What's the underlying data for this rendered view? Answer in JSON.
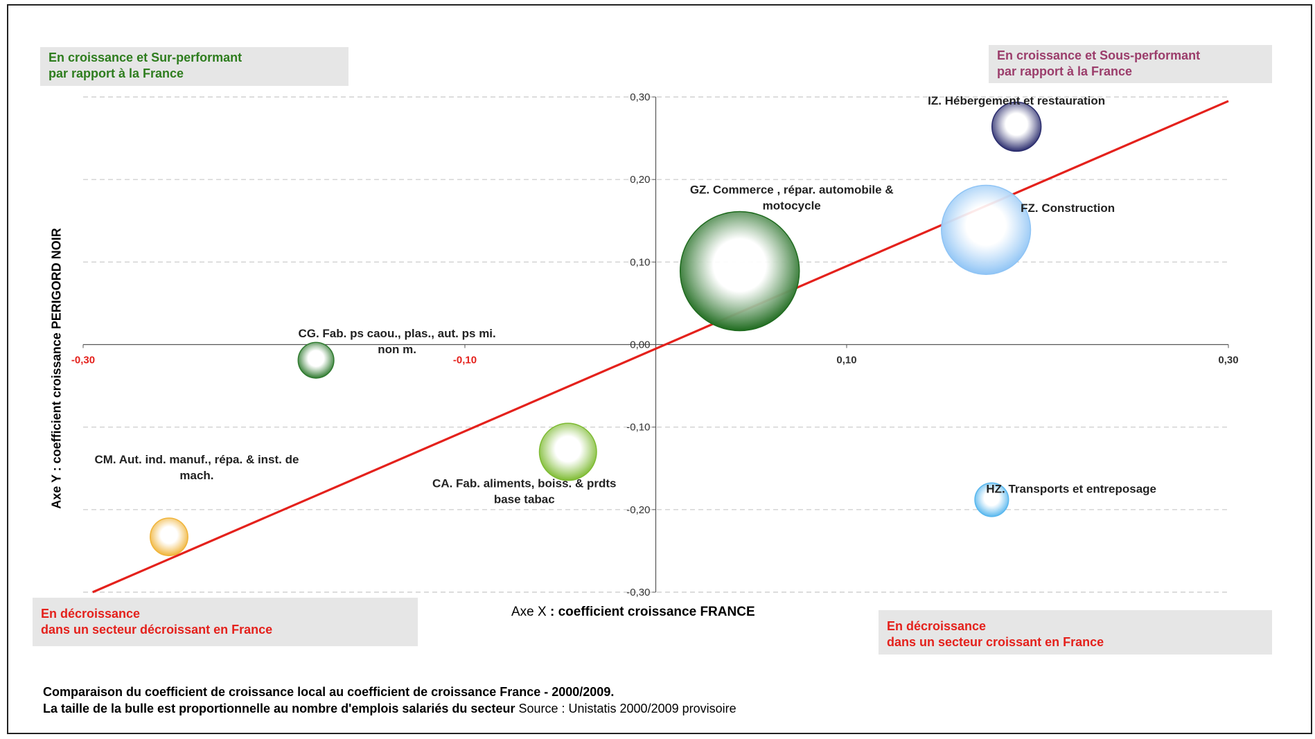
{
  "quadrants": {
    "top_left": {
      "line1": "En croissance et Sur-performant",
      "line2": "par rapport à la France",
      "color": "#2e7d1e"
    },
    "top_right": {
      "line1": "En croissance et Sous-performant",
      "line2": "par rapport à la France",
      "color": "#9b3d6b"
    },
    "bottom_left": {
      "line1": "En décroissance",
      "line2": "dans un secteur décroissant en France",
      "color": "#e4211c"
    },
    "bottom_right": {
      "line1": "En décroissance",
      "line2": "dans un secteur croissant en France",
      "color": "#e4211c"
    }
  },
  "caption": {
    "line1": "Comparaison du coefficient de croissance local au coefficient de croissance France - 2000/2009.",
    "line2_bold": "La taille de la bulle est proportionnelle au nombre d'emplois salariés du secteur",
    "line2_source": " Source : Unistatis 2000/2009 provisoire"
  },
  "chart_data": {
    "type": "scatter",
    "subtype": "bubble",
    "xlabel_prefix": "Axe X",
    "xlabel_rest": " : coefficient croissance FRANCE",
    "ylabel": "Axe Y : coefficient croissance PERIGORD NOIR",
    "xlim": [
      -0.3,
      0.3
    ],
    "ylim": [
      -0.3,
      0.3
    ],
    "x_ticks": [
      "-0,30",
      "-0,10",
      "0,10",
      "0,30"
    ],
    "x_tick_values": [
      -0.3,
      -0.1,
      0.1,
      0.3
    ],
    "y_ticks": [
      "0,30",
      "0,20",
      "0,10",
      "0,00",
      "-0,10",
      "-0,20",
      "-0,30"
    ],
    "y_tick_values": [
      0.3,
      0.2,
      0.1,
      0.0,
      -0.1,
      -0.2,
      -0.3
    ],
    "x_tick_color": "#e4211c",
    "x_tick_color_positive": "#333333",
    "grid": "horizontal dashed",
    "reference_line": {
      "from": [
        -0.295,
        -0.3
      ],
      "to": [
        0.3,
        0.295
      ],
      "color": "#e4211c"
    },
    "points": [
      {
        "label_lines": [
          "IZ. Hébergement et restauration"
        ],
        "x": 0.189,
        "y": 0.264,
        "size": 0.17,
        "color": "#2b2d6e"
      },
      {
        "label_lines": [
          "GZ. Commerce , répar. automobile &",
          "motocycle"
        ],
        "x": 0.044,
        "y": 0.089,
        "size": 1.0,
        "color": "#1f6b1f"
      },
      {
        "label_lines": [
          "FZ. Construction"
        ],
        "x": 0.173,
        "y": 0.139,
        "size": 0.56,
        "color": "#8fc4f5"
      },
      {
        "label_lines": [
          "CG. Fab. ps caou., plas., aut. ps mi.",
          "non m."
        ],
        "x": -0.178,
        "y": -0.019,
        "size": 0.09,
        "color": "#2f7a2f"
      },
      {
        "label_lines": [
          "CA. Fab. aliments, boiss. & prdts",
          "base tabac"
        ],
        "x": -0.046,
        "y": -0.13,
        "size": 0.23,
        "color": "#7ebb33"
      },
      {
        "label_lines": [
          "CM. Aut. ind. manuf., répa. & inst. de",
          "mach."
        ],
        "x": -0.255,
        "y": -0.233,
        "size": 0.1,
        "color": "#f0b43a"
      },
      {
        "label_lines": [
          "HZ. Transports et entreposage"
        ],
        "x": 0.176,
        "y": -0.188,
        "size": 0.08,
        "color": "#58b7ee"
      }
    ]
  }
}
